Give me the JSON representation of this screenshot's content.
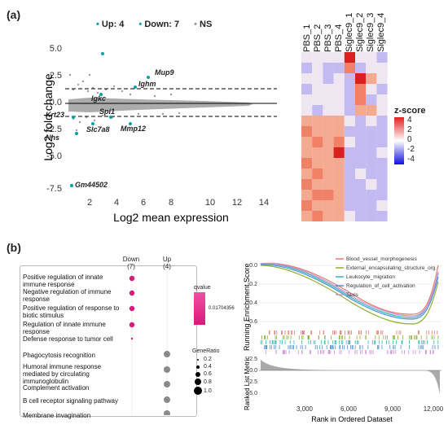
{
  "panel_a": {
    "label": "(a)",
    "ma_plot": {
      "legend": [
        {
          "text": "Up: 4",
          "color": "#00a4a6"
        },
        {
          "text": "Down: 7",
          "color": "#00a4a6"
        },
        {
          "text": "NS",
          "color": "#9a9a9a"
        }
      ],
      "xlabel": "Log2 mean expression",
      "ylabel": "Log2 fold change",
      "xticks": [
        "2",
        "4",
        "6",
        "8",
        "10",
        "12",
        "14"
      ],
      "yticks": [
        "5.0",
        "2.5",
        "0.0",
        "-2.5",
        "-5.0",
        "-7.5"
      ],
      "genes": [
        "Mup9",
        "Ighm",
        "Igkc",
        "Krt23",
        "Spi1",
        "Slc7a8",
        "Mmp12",
        "Nhs",
        "Gm44502"
      ]
    },
    "heatmap": {
      "columns": [
        "PBS_1",
        "PBS_2",
        "PBS_3",
        "PBS_4",
        "Siglec9_1",
        "Siglec9_2",
        "Siglec9_3",
        "Siglec9_4"
      ],
      "legend_title": "z-score",
      "legend_ticks": [
        "4",
        "2",
        "0",
        "-2",
        "-4"
      ]
    }
  },
  "panel_b": {
    "label": "(b)",
    "dotplot": {
      "col_headers": [
        {
          "name": "Down",
          "count": "(7)"
        },
        {
          "name": "Up",
          "count": "(4)"
        }
      ],
      "terms": [
        "Positive regulation of innate immune response",
        "Negative regulation of immune response",
        "Positive regulation of response to biotic stimulus",
        "Regulation of innate immune response",
        "Defense response to tumor cell",
        "Phagocytosis recognition",
        "Humoral immune response mediated by circulating immunoglobulin",
        "Complement activation",
        "B cell receptor signaling pathway",
        "Membrane invagination"
      ],
      "qvalue_title": "qvalue",
      "qvalue_tick": "0.01704356",
      "generatio_title": "GeneRatio",
      "generatio_ticks": [
        "0.2",
        "0.4",
        "0.6",
        "0.8",
        "1.0"
      ]
    },
    "gsea": {
      "ylabel_top": "Running Enrichment Score",
      "ylabel_bottom": "Ranked List Metric",
      "xlabel": "Rank in Ordered Dataset",
      "xticks": [
        "3,000",
        "6,000",
        "9,000",
        "12,000"
      ],
      "es_yticks": [
        "0.0",
        "-0.2",
        "-0.4",
        "-0.6"
      ],
      "metric_yticks": [
        "2.5",
        "0.0",
        "-2.5",
        "-5.0"
      ],
      "series": [
        {
          "name": "Blood_vessel_morphogenesis",
          "color": "#e07b6e"
        },
        {
          "name": "External_encapsulating_structure_org",
          "color": "#8db02a"
        },
        {
          "name": "Leukocyte_migration",
          "color": "#36b6b0"
        },
        {
          "name": "Regulation_of_cell_activation",
          "color": "#4d8fd6"
        },
        {
          "name": "Taxis",
          "color": "#c98fd6"
        }
      ]
    }
  }
}
